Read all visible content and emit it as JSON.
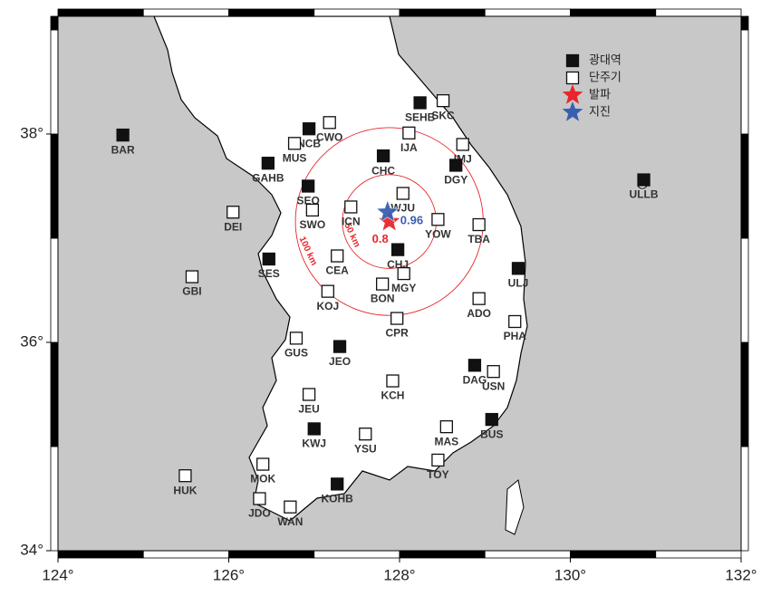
{
  "map": {
    "xlim": [
      124,
      132
    ],
    "ylim": [
      34,
      39.13
    ],
    "xticks": [
      {
        "value": 124,
        "label": "124°"
      },
      {
        "value": 126,
        "label": "126°"
      },
      {
        "value": 128,
        "label": "128°"
      },
      {
        "value": 130,
        "label": "130°"
      },
      {
        "value": 132,
        "label": "132°"
      }
    ],
    "yticks": [
      {
        "value": 34,
        "label": "34°"
      },
      {
        "value": 36,
        "label": "36°"
      },
      {
        "value": 38,
        "label": "38°"
      }
    ],
    "legend": [
      {
        "label": "광대역",
        "symbol": "broadband"
      },
      {
        "label": "단주기",
        "symbol": "short-period"
      },
      {
        "label": "발파",
        "symbol": "blast"
      },
      {
        "label": "지진",
        "symbol": "earthquake"
      }
    ],
    "stations": [
      {
        "name": "BAR",
        "type": "broadband",
        "lon": 124.76,
        "lat": 37.99
      },
      {
        "name": "SEHB",
        "type": "broadband",
        "lon": 128.24,
        "lat": 38.3
      },
      {
        "name": "SKC",
        "type": "short-period",
        "lon": 128.51,
        "lat": 38.32
      },
      {
        "name": "CWO",
        "type": "short-period",
        "lon": 127.18,
        "lat": 38.11
      },
      {
        "name": "NCB",
        "type": "broadband",
        "lon": 126.94,
        "lat": 38.05
      },
      {
        "name": "MUS",
        "type": "short-period",
        "lon": 126.77,
        "lat": 37.91
      },
      {
        "name": "IJA",
        "type": "short-period",
        "lon": 128.11,
        "lat": 38.01
      },
      {
        "name": "IMJ",
        "type": "short-period",
        "lon": 128.74,
        "lat": 37.9
      },
      {
        "name": "CHC",
        "type": "broadband",
        "lon": 127.81,
        "lat": 37.79
      },
      {
        "name": "DGY",
        "type": "broadband",
        "lon": 128.66,
        "lat": 37.7
      },
      {
        "name": "GAHB",
        "type": "broadband",
        "lon": 126.46,
        "lat": 37.72
      },
      {
        "name": "SEO",
        "type": "broadband",
        "lon": 126.93,
        "lat": 37.5
      },
      {
        "name": "WJU",
        "type": "short-period",
        "lon": 128.04,
        "lat": 37.43
      },
      {
        "name": "ICN",
        "type": "short-period",
        "lon": 127.43,
        "lat": 37.3
      },
      {
        "name": "SWO",
        "type": "short-period",
        "lon": 126.98,
        "lat": 37.27
      },
      {
        "name": "DEI",
        "type": "short-period",
        "lon": 126.05,
        "lat": 37.25
      },
      {
        "name": "YOW",
        "type": "short-period",
        "lon": 128.45,
        "lat": 37.18
      },
      {
        "name": "TBA",
        "type": "short-period",
        "lon": 128.93,
        "lat": 37.13
      },
      {
        "name": "CHJ",
        "type": "broadband",
        "lon": 127.98,
        "lat": 36.89
      },
      {
        "name": "CEA",
        "type": "short-period",
        "lon": 127.27,
        "lat": 36.83
      },
      {
        "name": "SES",
        "type": "broadband",
        "lon": 126.47,
        "lat": 36.8
      },
      {
        "name": "ULJ",
        "type": "broadband",
        "lon": 129.39,
        "lat": 36.71
      },
      {
        "name": "MGY",
        "type": "short-period",
        "lon": 128.05,
        "lat": 36.66
      },
      {
        "name": "GBI",
        "type": "short-period",
        "lon": 125.57,
        "lat": 36.63
      },
      {
        "name": "BON",
        "type": "short-period",
        "lon": 127.8,
        "lat": 36.56
      },
      {
        "name": "KOJ",
        "type": "short-period",
        "lon": 127.16,
        "lat": 36.49
      },
      {
        "name": "ADO",
        "type": "short-period",
        "lon": 128.93,
        "lat": 36.42
      },
      {
        "name": "CPR",
        "type": "short-period",
        "lon": 127.97,
        "lat": 36.23
      },
      {
        "name": "PHA",
        "type": "short-period",
        "lon": 129.35,
        "lat": 36.2
      },
      {
        "name": "GUS",
        "type": "short-period",
        "lon": 126.79,
        "lat": 36.04
      },
      {
        "name": "JEO",
        "type": "broadband",
        "lon": 127.3,
        "lat": 35.96
      },
      {
        "name": "DAG",
        "type": "broadband",
        "lon": 128.88,
        "lat": 35.78
      },
      {
        "name": "USN",
        "type": "short-period",
        "lon": 129.1,
        "lat": 35.72
      },
      {
        "name": "KCH",
        "type": "short-period",
        "lon": 127.92,
        "lat": 35.63
      },
      {
        "name": "JEU",
        "type": "short-period",
        "lon": 126.94,
        "lat": 35.5
      },
      {
        "name": "KWJ",
        "type": "broadband",
        "lon": 127.0,
        "lat": 35.17
      },
      {
        "name": "BUS",
        "type": "broadband",
        "lon": 129.08,
        "lat": 35.26
      },
      {
        "name": "YSU",
        "type": "short-period",
        "lon": 127.6,
        "lat": 35.12
      },
      {
        "name": "MAS",
        "type": "short-period",
        "lon": 128.55,
        "lat": 35.19
      },
      {
        "name": "TOY",
        "type": "short-period",
        "lon": 128.45,
        "lat": 34.87
      },
      {
        "name": "HUK",
        "type": "short-period",
        "lon": 125.49,
        "lat": 34.72
      },
      {
        "name": "MOK",
        "type": "short-period",
        "lon": 126.4,
        "lat": 34.83
      },
      {
        "name": "JDO",
        "type": "short-period",
        "lon": 126.36,
        "lat": 34.5
      },
      {
        "name": "WAN",
        "type": "short-period",
        "lon": 126.72,
        "lat": 34.42
      },
      {
        "name": "KOHB",
        "type": "broadband",
        "lon": 127.27,
        "lat": 34.64
      },
      {
        "name": "ULLB",
        "type": "broadband",
        "lon": 130.86,
        "lat": 37.56
      }
    ],
    "events": [
      {
        "type": "blast",
        "color": "#e8262b",
        "lon": 127.88,
        "lat": 37.16,
        "magnitude": 0.8
      },
      {
        "type": "earthquake",
        "color": "#3a5fb0",
        "lon": 127.86,
        "lat": 37.25,
        "magnitude": 0.96
      }
    ],
    "circles": [
      {
        "radius": 50,
        "label": "50 km"
      },
      {
        "radius": 100,
        "label": "100 km"
      }
    ]
  }
}
